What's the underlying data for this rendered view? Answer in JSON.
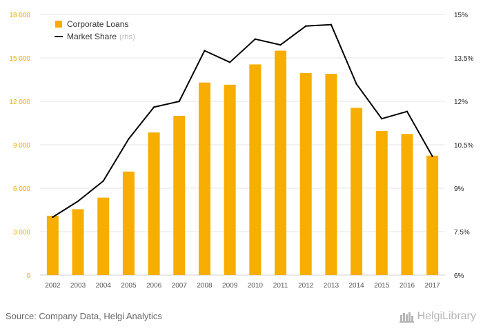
{
  "chart_data": {
    "type": "bar",
    "categories": [
      "2002",
      "2003",
      "2004",
      "2005",
      "2006",
      "2007",
      "2008",
      "2009",
      "2010",
      "2011",
      "2012",
      "2013",
      "2014",
      "2015",
      "2016",
      "2017"
    ],
    "series": [
      {
        "name": "Corporate Loans",
        "type": "bar",
        "axis": "left",
        "color": "#f7ae00",
        "values": [
          4100,
          4550,
          5350,
          7150,
          9850,
          11000,
          13300,
          13150,
          14550,
          15500,
          13950,
          13900,
          11550,
          9950,
          9750,
          8250
        ]
      },
      {
        "name": "Market Share",
        "legend_suffix": "(rhs)",
        "type": "line",
        "axis": "right",
        "color": "#000000",
        "values": [
          8.0,
          8.55,
          9.25,
          10.7,
          11.8,
          12.0,
          13.75,
          13.35,
          14.15,
          13.95,
          14.6,
          14.65,
          12.6,
          11.4,
          11.65,
          10.1
        ]
      }
    ],
    "left_axis": {
      "min": 0,
      "max": 18000,
      "ticks": [
        0,
        3000,
        6000,
        9000,
        12000,
        15000,
        18000
      ],
      "tick_labels": [
        "0",
        "3 000",
        "6 000",
        "9 000",
        "12 000",
        "15 000",
        "18 000"
      ],
      "color": "#f5a800"
    },
    "right_axis": {
      "min": 6,
      "max": 15,
      "ticks": [
        6,
        7.5,
        9,
        10.5,
        12,
        13.5,
        15
      ],
      "tick_labels": [
        "6%",
        "7.5%",
        "9%",
        "10.5%",
        "12%",
        "13.5%",
        "15%"
      ],
      "color": "#222222"
    },
    "grid": true,
    "legend_position": "top-left"
  },
  "footer": {
    "source": "Source: Company Data, Helgi Analytics",
    "brand": "HelgiLibrary"
  }
}
